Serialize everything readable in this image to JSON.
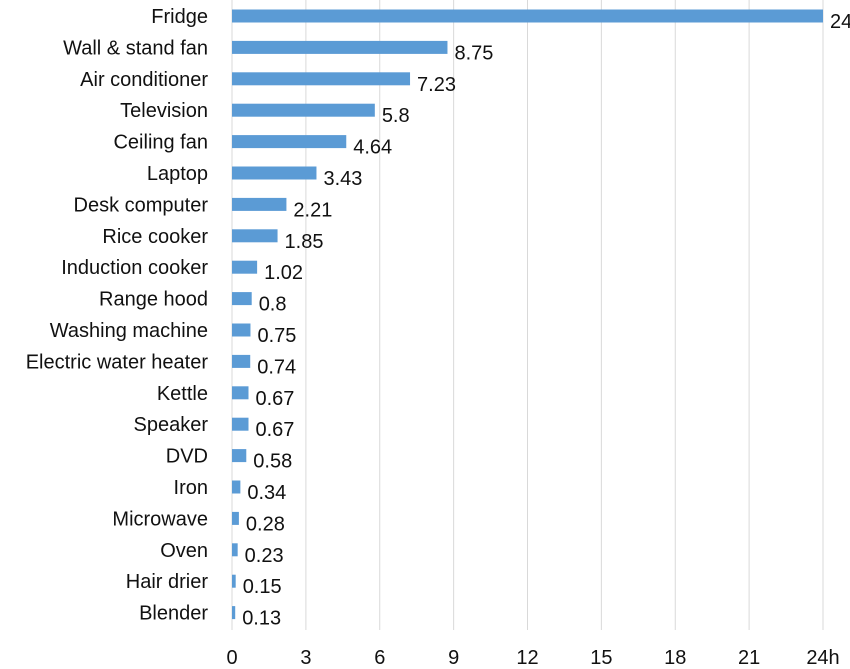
{
  "chart_data": {
    "type": "bar",
    "orientation": "horizontal",
    "categories": [
      "Fridge",
      "Wall & stand fan",
      "Air conditioner",
      "Television",
      "Ceiling fan",
      "Laptop",
      "Desk computer",
      "Rice cooker",
      "Induction cooker",
      "Range hood",
      "Washing machine",
      "Electric water heater",
      "Kettle",
      "Speaker",
      "DVD",
      "Iron",
      "Microwave",
      "Oven",
      "Hair drier",
      "Blender"
    ],
    "values": [
      24,
      8.75,
      7.23,
      5.8,
      4.64,
      3.43,
      2.21,
      1.85,
      1.02,
      0.8,
      0.75,
      0.74,
      0.67,
      0.67,
      0.58,
      0.34,
      0.28,
      0.23,
      0.15,
      0.13
    ],
    "value_labels": [
      "24",
      "8.75",
      "7.23",
      "5.8",
      "4.64",
      "3.43",
      "2.21",
      "1.85",
      "1.02",
      "0.8",
      "0.75",
      "0.74",
      "0.67",
      "0.67",
      "0.58",
      "0.34",
      "0.28",
      "0.23",
      "0.15",
      "0.13"
    ],
    "xlim": [
      0,
      24
    ],
    "x_ticks": [
      0,
      3,
      6,
      9,
      12,
      15,
      18,
      21,
      24
    ],
    "x_tick_labels": [
      "0",
      "3",
      "6",
      "9",
      "12",
      "15",
      "18",
      "21",
      "24h"
    ],
    "grid": "vertical",
    "legend": "none",
    "bar_color": "#5b9bd5"
  }
}
